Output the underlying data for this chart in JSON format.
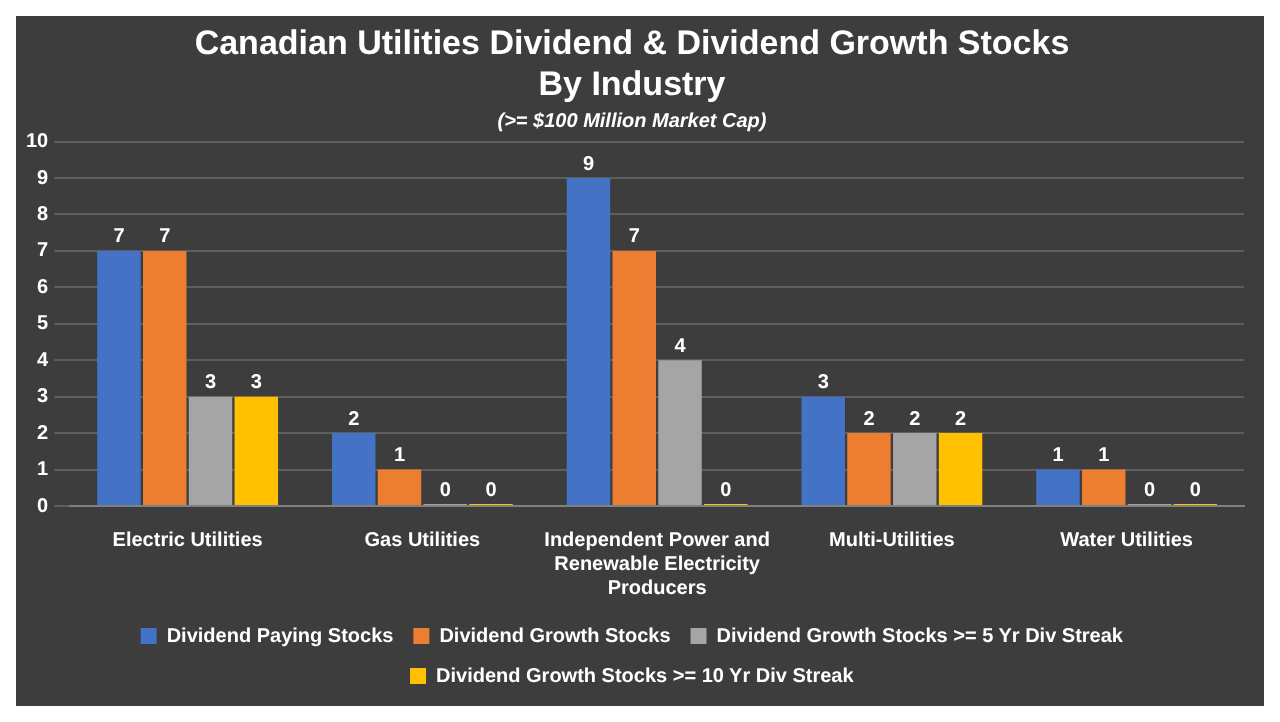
{
  "chart_data": {
    "type": "bar",
    "title": "Canadian Utilities Dividend & Dividend Growth Stocks By Industry",
    "subtitle": "(>= $100 Million Market Cap)",
    "categories": [
      "Electric Utilities",
      "Gas Utilities",
      "Independent Power and Renewable Electricity Producers",
      "Multi-Utilities",
      "Water Utilities"
    ],
    "series": [
      {
        "name": "Dividend Paying Stocks",
        "color": "#4472c4",
        "values": [
          7,
          2,
          9,
          3,
          1
        ]
      },
      {
        "name": "Dividend Growth Stocks",
        "color": "#ed7d31",
        "values": [
          7,
          1,
          7,
          2,
          1
        ]
      },
      {
        "name": "Dividend Growth Stocks >= 5 Yr Div Streak",
        "color": "#a5a5a5",
        "values": [
          3,
          0,
          4,
          2,
          0
        ]
      },
      {
        "name": "Dividend Growth Stocks >= 10 Yr Div Streak",
        "color": "#ffc000",
        "values": [
          3,
          0,
          0,
          2,
          0
        ]
      }
    ],
    "ylim": [
      0,
      10
    ],
    "yticks": [
      0,
      1,
      2,
      3,
      4,
      5,
      6,
      7,
      8,
      9,
      10
    ],
    "grid": "y",
    "legend": "bottom",
    "data_labels": true
  }
}
